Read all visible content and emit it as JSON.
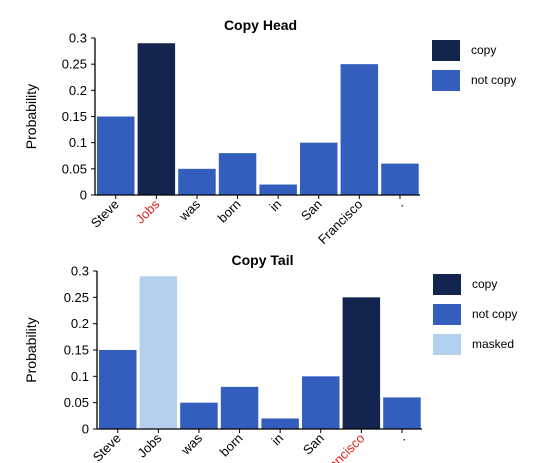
{
  "chart_data": [
    {
      "type": "bar",
      "title": "Copy Head",
      "ylabel": "Probability",
      "xlabel": "",
      "ylim": [
        0,
        0.3
      ],
      "yticks": [
        "0",
        "0.05",
        "0.1",
        "0.15",
        "0.2",
        "0.25",
        "0.3"
      ],
      "categories": [
        "Steve",
        "Jobs",
        "was",
        "born",
        "in",
        "San",
        "Francisco",
        "."
      ],
      "values": [
        0.15,
        0.29,
        0.05,
        0.08,
        0.02,
        0.1,
        0.25,
        0.06
      ],
      "bar_kinds": [
        "not copy",
        "copy",
        "not copy",
        "not copy",
        "not copy",
        "not copy",
        "not copy",
        "not copy"
      ],
      "highlight_labels": [
        "Jobs"
      ],
      "legend": [
        {
          "label": "copy",
          "color": "#13254f"
        },
        {
          "label": "not copy",
          "color": "#335ebe"
        }
      ],
      "legend_position": "right",
      "grid": false
    },
    {
      "type": "bar",
      "title": "Copy Tail",
      "ylabel": "Probability",
      "xlabel": "",
      "ylim": [
        0,
        0.3
      ],
      "yticks": [
        "0",
        "0.05",
        "0.1",
        "0.15",
        "0.2",
        "0.25",
        "0.3"
      ],
      "categories": [
        "Steve",
        "Jobs",
        "was",
        "born",
        "in",
        "San",
        "Francisco",
        "."
      ],
      "values": [
        0.15,
        0.29,
        0.05,
        0.08,
        0.02,
        0.1,
        0.25,
        0.06
      ],
      "bar_kinds": [
        "not copy",
        "masked",
        "not copy",
        "not copy",
        "not copy",
        "not copy",
        "copy",
        "not copy"
      ],
      "highlight_labels": [
        "Francisco"
      ],
      "legend": [
        {
          "label": "copy",
          "color": "#13254f"
        },
        {
          "label": "not copy",
          "color": "#335ebe"
        },
        {
          "label": "masked",
          "color": "#b3d1ee"
        }
      ],
      "legend_position": "right",
      "grid": false
    }
  ],
  "colors": {
    "copy": "#13254f",
    "not copy": "#335ebe",
    "masked": "#b3d1ee",
    "highlight_text": "#e0211d"
  }
}
